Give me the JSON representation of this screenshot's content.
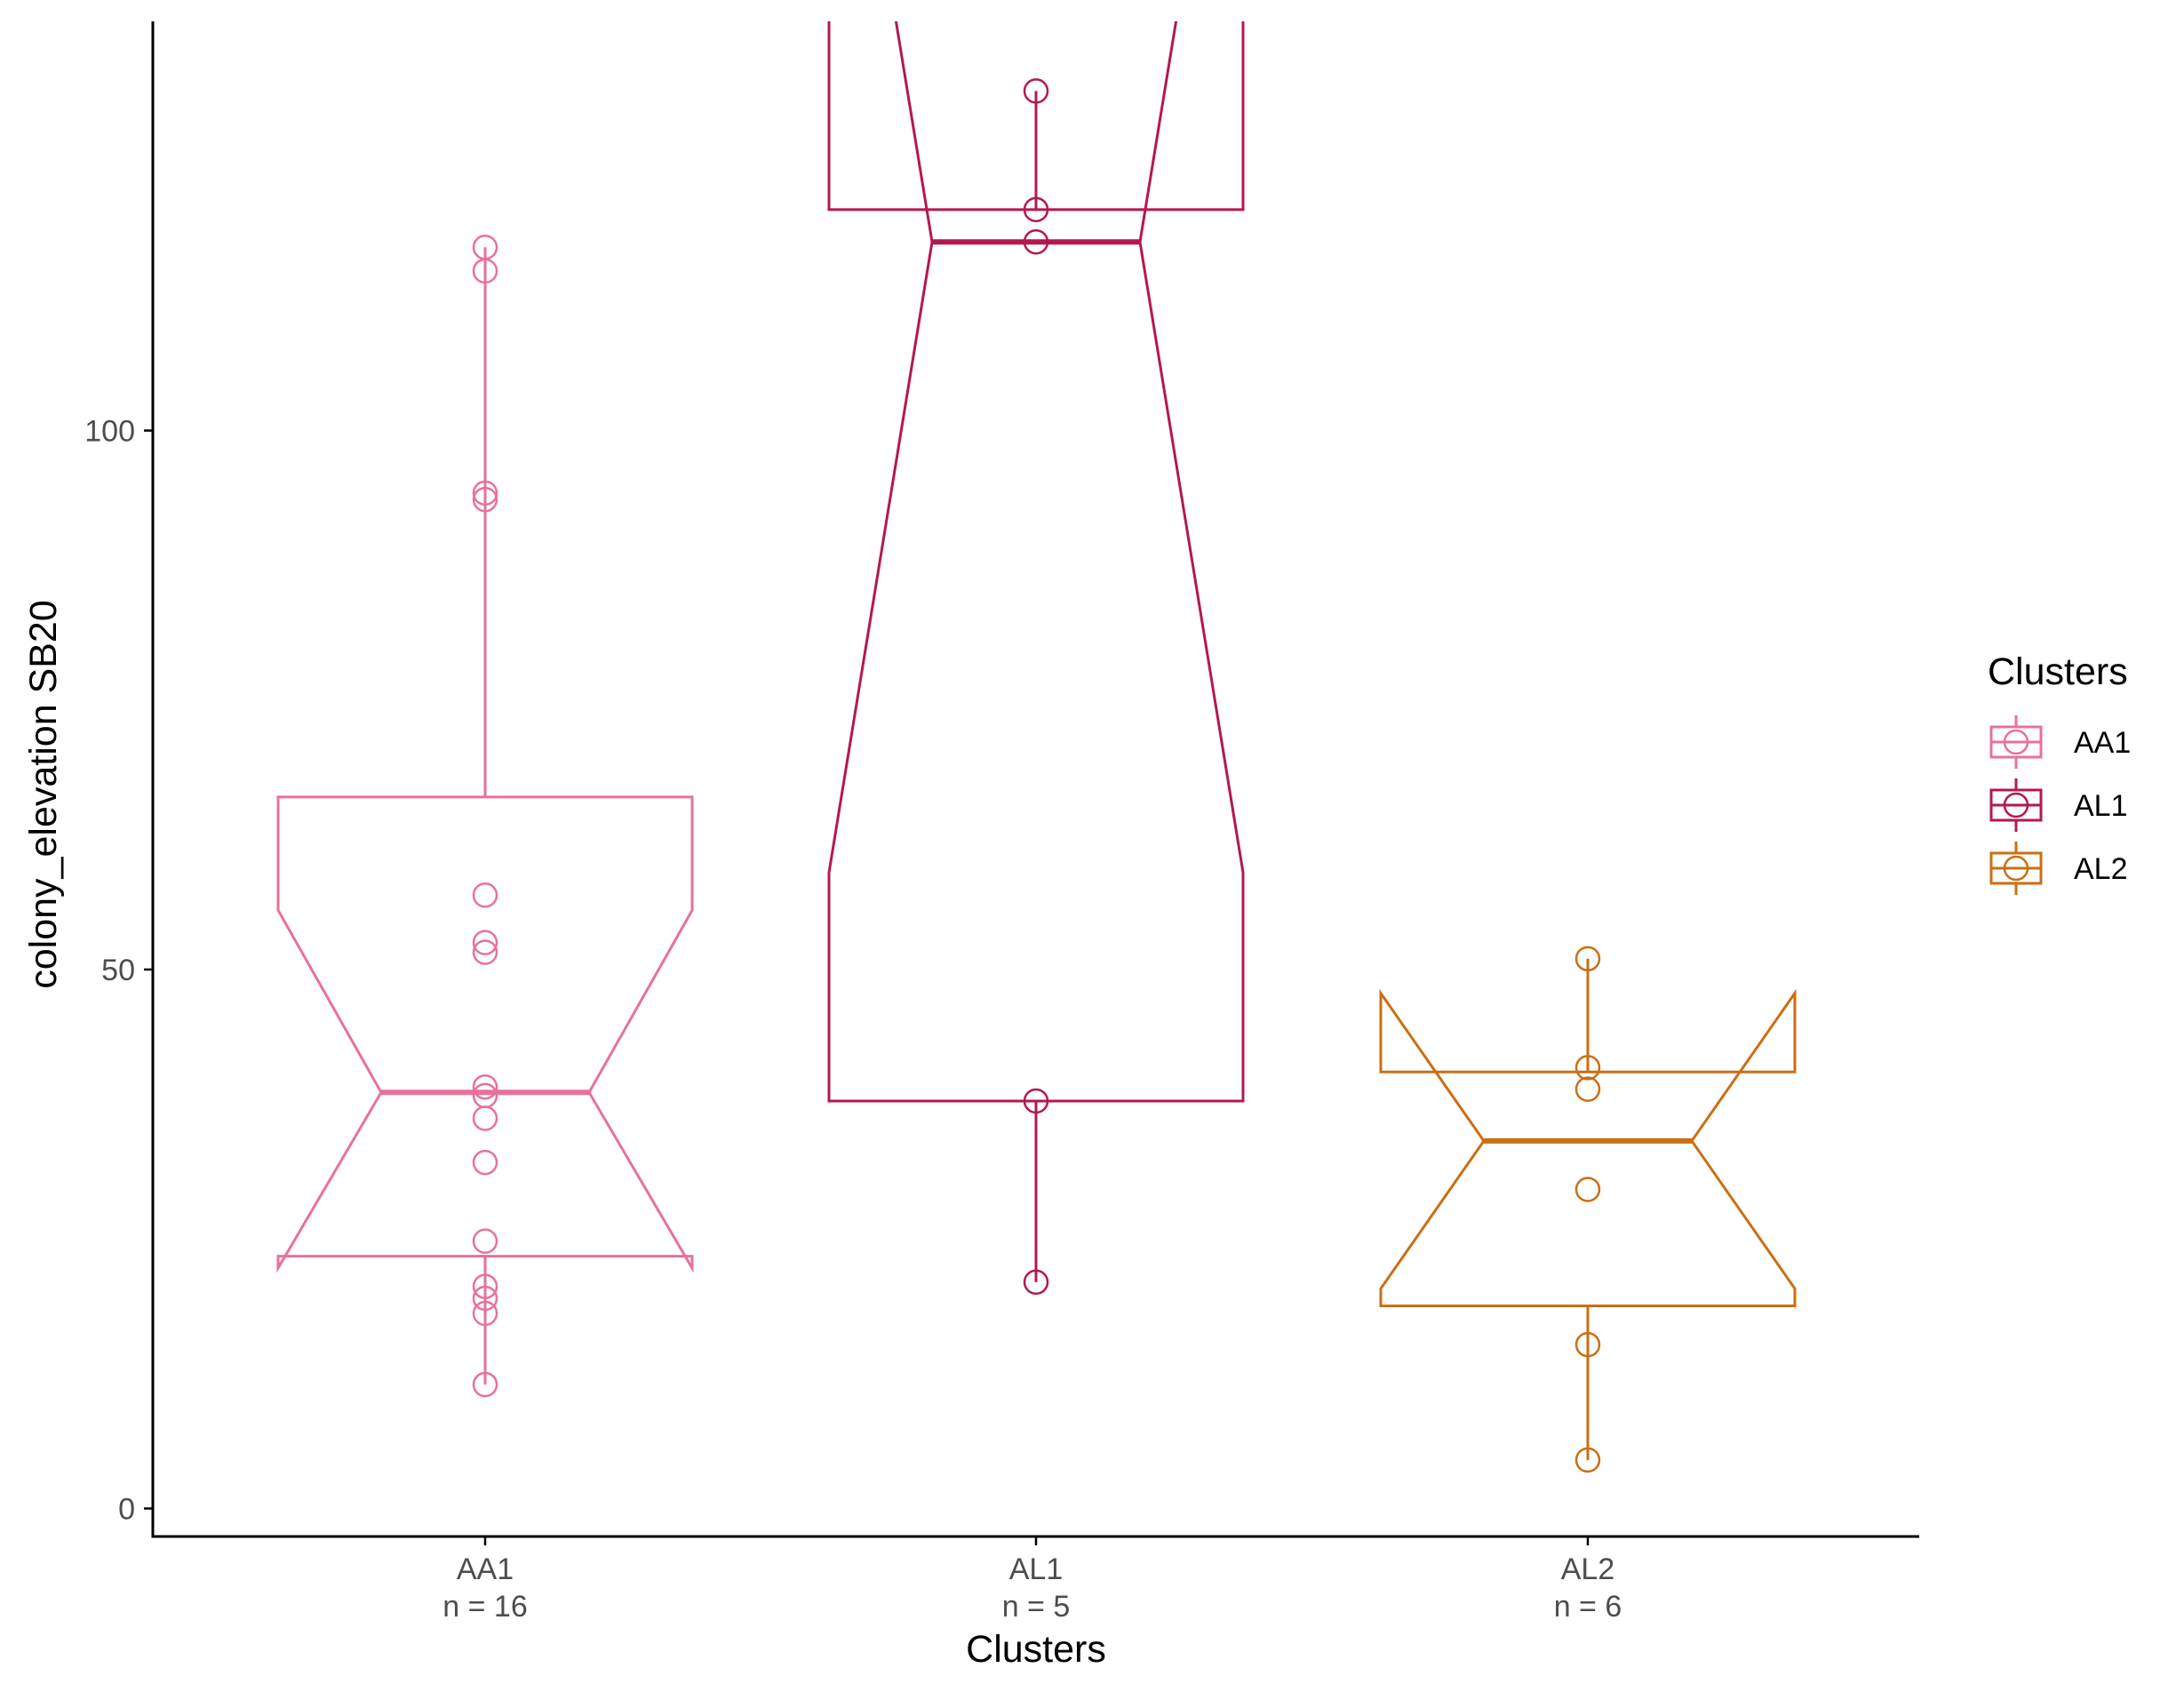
{
  "chart_data": {
    "type": "box",
    "notched": true,
    "xlabel": "Clusters",
    "ylabel": "colony_elevation SB20",
    "ylim": [
      -2,
      140
    ],
    "yticks": [
      0,
      50,
      100
    ],
    "categories": [
      {
        "name": "AA1",
        "n_label": "n = 16",
        "color": "#E8719A",
        "q1": 23.4,
        "median": 38.6,
        "q3": 66.0,
        "notch_low": 22.3,
        "notch_high": 55.5,
        "whisker_low": 11.5,
        "whisker_high": 117.0,
        "points": [
          117.0,
          114.8,
          94.2,
          93.6,
          56.9,
          52.5,
          51.6,
          39.1,
          38.3,
          36.2,
          32.1,
          24.8,
          20.6,
          19.5,
          18.1,
          11.5
        ]
      },
      {
        "name": "AL1",
        "n_label": "n = 5",
        "color": "#B5184A",
        "q1": 37.8,
        "median": 117.5,
        "q3": 120.5,
        "notch_low": 59.0,
        "notch_high": 176.0,
        "whisker_low": 21.0,
        "whisker_high": 131.5,
        "points": [
          131.5,
          120.5,
          117.5,
          37.8,
          21.0
        ]
      },
      {
        "name": "AL2",
        "n_label": "n = 6",
        "color": "#CC6E12",
        "q1": 18.8,
        "median": 34.1,
        "q3": 40.5,
        "notch_low": 20.4,
        "notch_high": 47.8,
        "whisker_low": 4.5,
        "whisker_high": 51.0,
        "points": [
          51.0,
          40.9,
          38.9,
          29.6,
          15.2,
          4.5
        ]
      }
    ],
    "legend": {
      "title": "Clusters",
      "position": "right",
      "items": [
        "AA1",
        "AL1",
        "AL2"
      ]
    },
    "grid": false
  }
}
